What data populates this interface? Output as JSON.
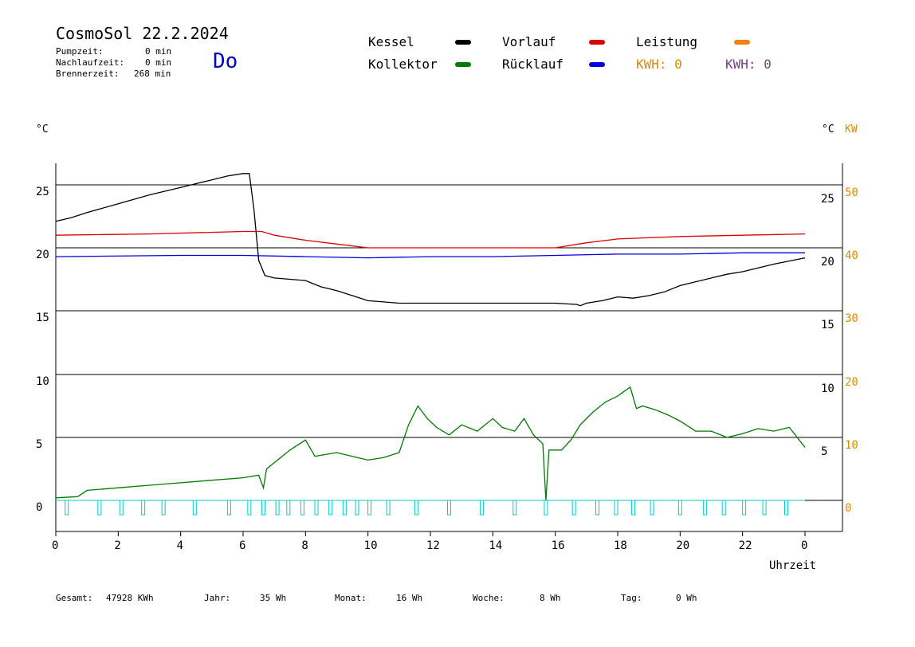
{
  "header": {
    "title": "CosmoSol 22.2.2024",
    "day": "Do",
    "stats": [
      {
        "label": "Pumpzeit:",
        "value": "0 min"
      },
      {
        "label": "Nachlaufzeit:",
        "value": "0 min"
      },
      {
        "label": "Brennerzeit:",
        "value": "268 min"
      }
    ]
  },
  "legend": {
    "kessel": {
      "label": "Kessel",
      "color": "#000000"
    },
    "kollektor": {
      "label": "Kollektor",
      "color": "#007a00"
    },
    "vorlauf": {
      "label": "Vorlauf",
      "color": "#dd0000"
    },
    "ruecklauf": {
      "label": "Rücklauf",
      "color": "#0000dd"
    },
    "leistung": {
      "label": "Leistung",
      "color": "#f08010"
    },
    "kwh_orange": "KWH: 0",
    "kwh_purple": "KWH: 0"
  },
  "chart_data": {
    "type": "line",
    "left_axis_unit": "°C",
    "right_axis_unit_1": "°C",
    "right_axis_unit_2": "KW",
    "xlabel": "Uhrzeit",
    "x_ticks": [
      "0",
      "2",
      "4",
      "6",
      "8",
      "10",
      "12",
      "14",
      "16",
      "18",
      "20",
      "22",
      "0"
    ],
    "upper": {
      "left_ticks": [
        "25",
        "20",
        "15"
      ],
      "right_ticks": [
        "25",
        "20",
        "15"
      ],
      "kw_ticks": [
        "50",
        "40",
        "30"
      ],
      "ylim": [
        14,
        27
      ]
    },
    "lower": {
      "left_ticks": [
        "10",
        "5",
        "0"
      ],
      "right_ticks": [
        "10",
        "5"
      ],
      "kw_ticks": [
        "20",
        "10",
        "0"
      ],
      "ylim": [
        -1.5,
        10
      ]
    },
    "series": [
      {
        "name": "Kessel",
        "color": "#000000",
        "x": [
          0,
          0.5,
          1,
          2,
          3,
          4,
          5,
          5.5,
          6,
          6.2,
          6.35,
          6.5,
          6.7,
          7,
          7.5,
          8,
          8.5,
          9,
          9.5,
          10,
          10.5,
          11,
          12,
          13,
          14,
          15,
          16,
          16.7,
          16.8,
          17,
          17.5,
          18,
          18.5,
          19,
          19.5,
          20,
          21,
          21.5,
          22,
          23,
          24
        ],
        "y": [
          22.1,
          22.4,
          22.8,
          23.5,
          24.2,
          24.8,
          25.4,
          25.7,
          25.9,
          25.9,
          23,
          19,
          17.8,
          17.6,
          17.5,
          17.4,
          16.9,
          16.6,
          16.2,
          15.8,
          15.7,
          15.6,
          15.6,
          15.6,
          15.6,
          15.6,
          15.6,
          15.5,
          15.4,
          15.6,
          15.8,
          16.1,
          16.0,
          16.2,
          16.5,
          17.0,
          17.6,
          17.9,
          18.1,
          18.7,
          19.2
        ]
      },
      {
        "name": "Vorlauf",
        "color": "#dd0000",
        "x": [
          0,
          3,
          6,
          6.6,
          7,
          8,
          9,
          10,
          11,
          12,
          14,
          16,
          17,
          18,
          19,
          20,
          22,
          24
        ],
        "y": [
          21.0,
          21.1,
          21.3,
          21.3,
          21.0,
          20.6,
          20.3,
          20.0,
          20.0,
          20.0,
          20.0,
          20.0,
          20.4,
          20.7,
          20.8,
          20.9,
          21.0,
          21.1
        ]
      },
      {
        "name": "Rücklauf",
        "color": "#0000dd",
        "x": [
          0,
          4,
          6,
          8,
          10,
          12,
          14,
          16,
          18,
          20,
          22,
          24
        ],
        "y": [
          19.3,
          19.4,
          19.4,
          19.3,
          19.2,
          19.3,
          19.3,
          19.4,
          19.5,
          19.5,
          19.6,
          19.6
        ]
      },
      {
        "name": "Kollektor",
        "color": "#007a00",
        "x": [
          0,
          0.7,
          1,
          2,
          3,
          4,
          5,
          6,
          6.5,
          6.65,
          6.75,
          7,
          7.5,
          8,
          8.3,
          9,
          9.5,
          10,
          10.5,
          11,
          11.3,
          11.6,
          11.9,
          12.2,
          12.6,
          13,
          13.5,
          14,
          14.3,
          14.7,
          15,
          15.3,
          15.6,
          15.7,
          15.8,
          16.2,
          16.5,
          16.8,
          17.2,
          17.6,
          18,
          18.4,
          18.6,
          18.8,
          19.2,
          19.6,
          20,
          20.5,
          21,
          21.5,
          22,
          22.5,
          23,
          23.5,
          24
        ],
        "y": [
          0.2,
          0.3,
          0.8,
          1.0,
          1.2,
          1.4,
          1.6,
          1.8,
          2.0,
          1.0,
          2.5,
          3.0,
          4.0,
          4.8,
          3.5,
          3.8,
          3.5,
          3.2,
          3.4,
          3.8,
          6.0,
          7.5,
          6.5,
          5.8,
          5.2,
          6.0,
          5.5,
          6.5,
          5.8,
          5.5,
          6.5,
          5.2,
          4.5,
          0.0,
          4.0,
          4.0,
          4.8,
          6.0,
          7.0,
          7.8,
          8.3,
          9.0,
          7.3,
          7.5,
          7.2,
          6.8,
          6.3,
          5.5,
          5.5,
          5.0,
          5.3,
          5.7,
          5.5,
          5.8,
          4.2
        ]
      }
    ],
    "pump_pulses_x": [
      0.35,
      1.4,
      2.1,
      2.8,
      3.45,
      4.45,
      5.55,
      6.2,
      6.65,
      7.1,
      7.45,
      7.9,
      8.35,
      8.8,
      9.25,
      9.65,
      10.05,
      10.65,
      11.55,
      12.6,
      13.65,
      14.7,
      15.7,
      16.6,
      17.35,
      17.95,
      18.5,
      19.1,
      20.0,
      20.8,
      21.4,
      22.05,
      22.7,
      23.4
    ],
    "pump_color": "#00cccc"
  },
  "footer": {
    "gesamt_label": "Gesamt:",
    "gesamt_value": "47928 KWh",
    "jahr_label": "Jahr:",
    "jahr_value": "35 Wh",
    "monat_label": "Monat:",
    "monat_value": "16 Wh",
    "woche_label": "Woche:",
    "woche_value": "8 Wh",
    "tag_label": "Tag:",
    "tag_value": "0 Wh"
  }
}
